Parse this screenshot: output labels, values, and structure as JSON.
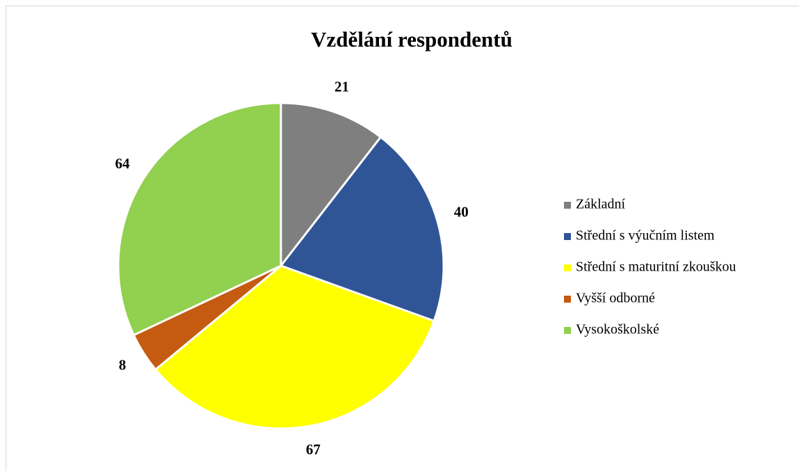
{
  "chart_data": {
    "type": "pie",
    "title": "Vzdělání respondentů",
    "categories": [
      "Základní",
      "Střední s výučním listem",
      "Střední s maturitní zkouškou",
      "Vyšší odborné",
      "Vysokoškolské"
    ],
    "values": [
      21,
      40,
      67,
      8,
      64
    ],
    "colors": [
      "#7f7f7f",
      "#2f5597",
      "#ffff00",
      "#c55a11",
      "#92d050"
    ],
    "legend": "right"
  }
}
